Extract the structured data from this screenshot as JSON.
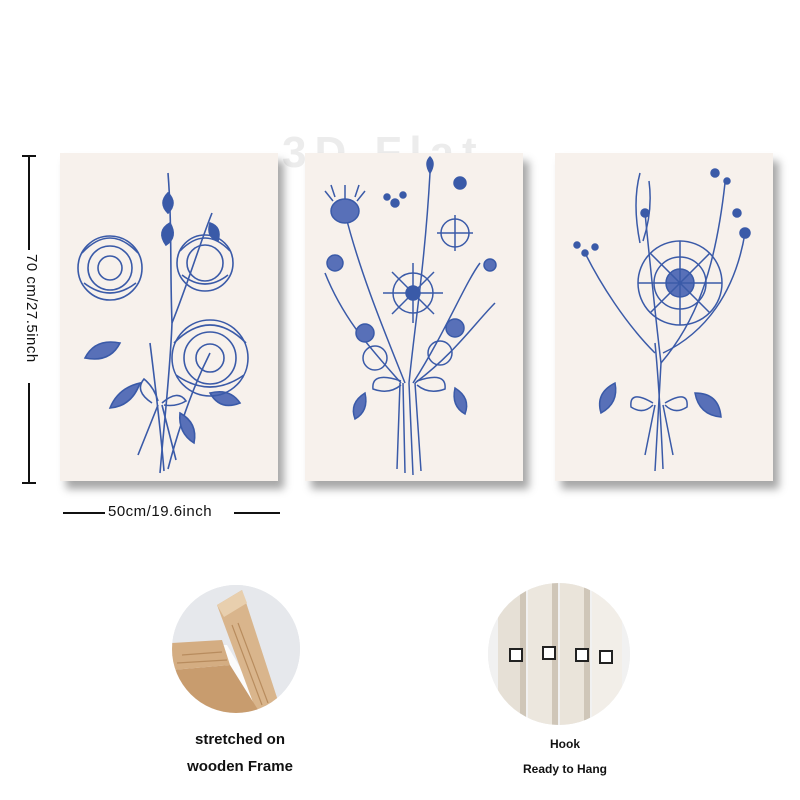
{
  "watermark": "3D Flat",
  "dimensions": {
    "height_label": "70 cm/27.5inch",
    "width_label": "50cm/19.6inch"
  },
  "panels": [
    {
      "subject": "peony-bouquet"
    },
    {
      "subject": "wildflower-bouquet"
    },
    {
      "subject": "sunflower-bouquet"
    }
  ],
  "features": {
    "frame_caption_line1": "stretched on",
    "frame_caption_line2": "wooden Frame",
    "hook_caption": "Hook",
    "hang_caption": "Ready to Hang"
  },
  "colors": {
    "ink": "#3a5aa8",
    "canvas": "#f7f1ec"
  }
}
